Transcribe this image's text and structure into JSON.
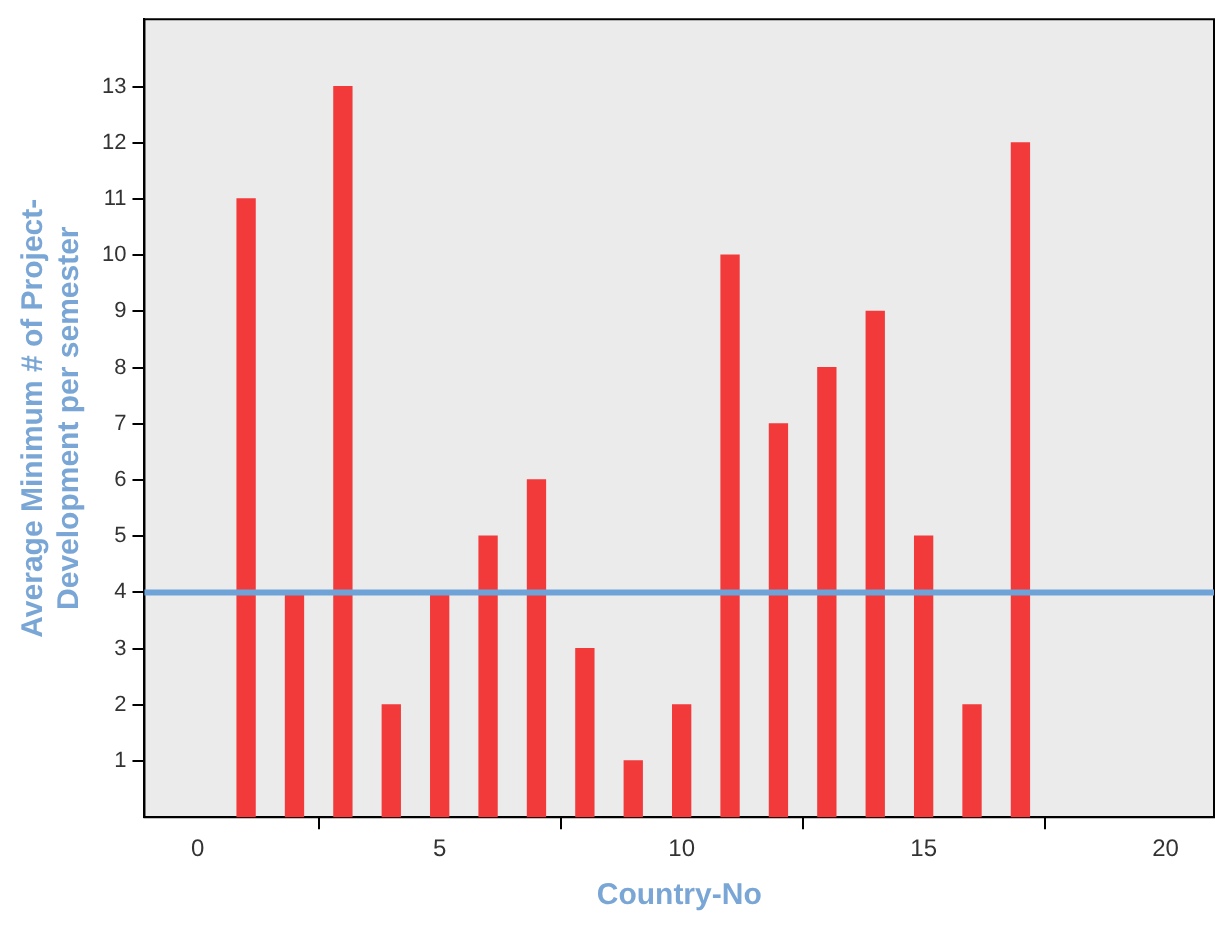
{
  "chart_data": {
    "type": "bar",
    "xlabel": "Country-No",
    "ylabel": "Average Minimum # of Project-Development per semester",
    "x": [
      1,
      2,
      3,
      4,
      5,
      6,
      7,
      8,
      9,
      10,
      11,
      12,
      13,
      14,
      15,
      16,
      17
    ],
    "values": [
      11,
      4,
      13,
      2,
      4,
      5,
      6,
      3,
      1,
      2,
      10,
      7,
      8,
      9,
      5,
      2,
      12
    ],
    "color": "#f23a3a",
    "xlim": [
      -1.1,
      21
    ],
    "xticks": [
      0,
      5,
      10,
      15,
      20
    ],
    "ylim": [
      0,
      14.2
    ],
    "yticks": [
      1,
      2,
      3,
      4,
      5,
      6,
      7,
      8,
      9,
      10,
      11,
      12,
      13
    ],
    "ref_lines": [
      {
        "axis": "y",
        "value": 4,
        "color": "#6fa3d8"
      }
    ],
    "grid": false,
    "legend": false
  }
}
